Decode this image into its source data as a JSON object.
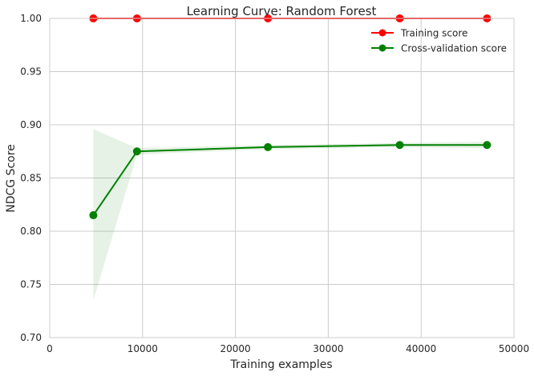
{
  "chart_data": {
    "type": "line",
    "title": "Learning Curve: Random Forest",
    "xlabel": "Training examples",
    "ylabel": "NDCG Score",
    "xlim": [
      0,
      50000
    ],
    "ylim": [
      0.7,
      1.0
    ],
    "x_ticks": [
      0,
      10000,
      20000,
      30000,
      40000,
      50000
    ],
    "y_ticks": [
      0.7,
      0.75,
      0.8,
      0.85,
      0.9,
      0.95,
      1.0
    ],
    "x_tick_labels": [
      "0",
      "10000",
      "20000",
      "30000",
      "40000",
      "50000"
    ],
    "y_tick_labels": [
      "0.70",
      "0.75",
      "0.80",
      "0.85",
      "0.90",
      "0.95",
      "1.00"
    ],
    "grid": true,
    "legend_position": "top-right",
    "x": [
      4700,
      9400,
      23500,
      37700,
      47100
    ],
    "series": [
      {
        "name": "Training score",
        "color": "#ff0000",
        "values": [
          1.0,
          1.0,
          1.0,
          1.0,
          1.0
        ],
        "band_lower": [
          1.0,
          1.0,
          1.0,
          1.0,
          1.0
        ],
        "band_upper": [
          1.0,
          1.0,
          1.0,
          1.0,
          1.0
        ],
        "band_color": "#ff0000"
      },
      {
        "name": "Cross-validation score",
        "color": "#008000",
        "values": [
          0.815,
          0.875,
          0.879,
          0.881,
          0.881
        ],
        "band_lower": [
          0.735,
          0.872,
          0.877,
          0.879,
          0.878
        ],
        "band_upper": [
          0.896,
          0.878,
          0.881,
          0.883,
          0.884
        ],
        "band_color": "#008000"
      }
    ]
  }
}
